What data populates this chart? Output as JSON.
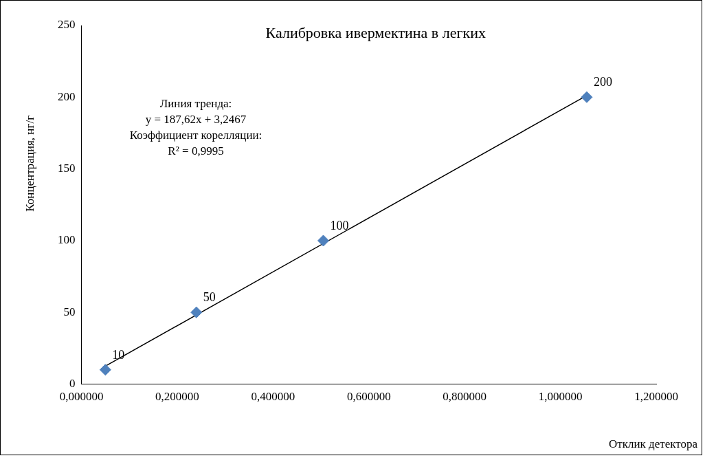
{
  "chart_data": {
    "type": "scatter",
    "title": "Калибровка ивермектина в легких",
    "xlabel": "Отклик детектора",
    "ylabel": "Концентрация, нг/г",
    "annotations": [
      "Линия тренда:",
      "y = 187,62x + 3,2467",
      "Коэффициент корелляции:",
      "R² = 0,9995"
    ],
    "series": [
      {
        "type": "scatter",
        "color": "#4f81bd",
        "x": [
          0.05,
          0.24,
          0.505,
          1.055
        ],
        "values": [
          10,
          50,
          100,
          200
        ],
        "value_labels": [
          "10",
          "50",
          "100",
          "200"
        ],
        "marker": "diamond"
      },
      {
        "type": "line",
        "color": "#000000",
        "x": [
          0.05,
          1.055
        ],
        "values": [
          12.6,
          201.2
        ],
        "marker": "none",
        "line_style": "solid"
      }
    ],
    "xlim": [
      0,
      1.2
    ],
    "xticks": [
      {
        "value": 0,
        "label": "0,000000"
      },
      {
        "value": 0.2,
        "label": "0,200000"
      },
      {
        "value": 0.4,
        "label": "0,400000"
      },
      {
        "value": 0.6,
        "label": "0,600000"
      },
      {
        "value": 0.8,
        "label": "0,800000"
      },
      {
        "value": 1.0,
        "label": "1,000000"
      },
      {
        "value": 1.2,
        "label": "1,200000"
      }
    ],
    "ylim": [
      0,
      250
    ],
    "yticks": [
      0,
      50,
      100,
      150,
      200,
      250
    ],
    "grid": false,
    "legend": false
  }
}
